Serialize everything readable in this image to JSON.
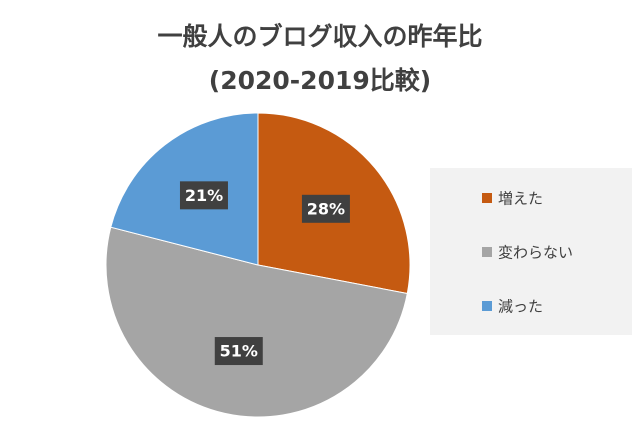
{
  "chart_data": {
    "type": "pie",
    "title": "一般人のブログ収入の昨年比",
    "subtitle": "(2020-2019比較)",
    "categories": [
      "増えた",
      "変わらない",
      "減った"
    ],
    "values": [
      28,
      51,
      21
    ],
    "value_labels": [
      "28%",
      "51%",
      "21%"
    ],
    "colors": [
      "#c55a11",
      "#a5a5a5",
      "#5b9bd5"
    ],
    "legend": "right"
  }
}
